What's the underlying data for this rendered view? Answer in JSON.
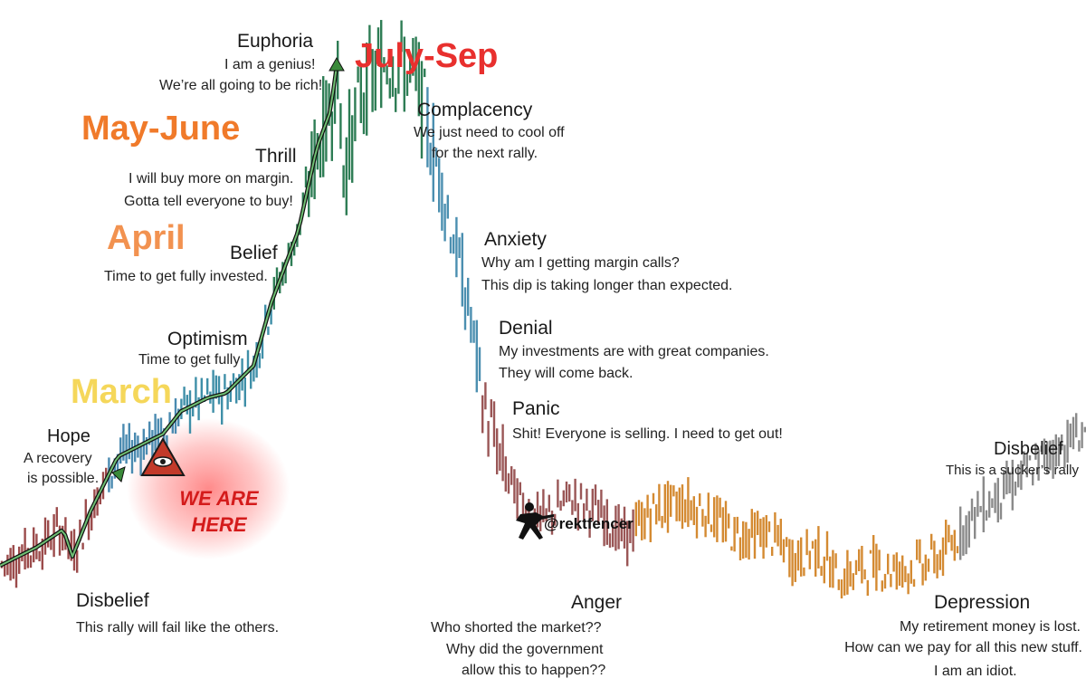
{
  "chart_data": {
    "type": "line",
    "title": "",
    "xlabel": "",
    "ylabel": "",
    "grid": false,
    "legend": "none",
    "stages": [
      {
        "key": "disbelief1",
        "name": "Disbelief",
        "quote": [
          "This rally will fail like the others."
        ],
        "color": "#7a3030"
      },
      {
        "key": "hope",
        "name": "Hope",
        "quote": [
          "A recovery",
          "is possible."
        ],
        "color": "#7a3030"
      },
      {
        "key": "optimism",
        "name": "Optimism",
        "quote": [
          "Time to get fully"
        ],
        "color": "#1a1a1a"
      },
      {
        "key": "belief",
        "name": "Belief",
        "quote": [
          "Time to get fully invested."
        ],
        "color": "#1a1a1a"
      },
      {
        "key": "thrill",
        "name": "Thrill",
        "quote": [
          "I will buy more on margin.",
          "Gotta tell everyone to buy!"
        ],
        "color": "#1a1a1a"
      },
      {
        "key": "euphoria",
        "name": "Euphoria",
        "quote": [
          "I am a genius!",
          "We’re all going to be rich!"
        ],
        "color": "#1a1a1a"
      },
      {
        "key": "complacency",
        "name": "Complacency",
        "quote": [
          "We just need to cool off",
          "for the next rally."
        ],
        "color": "#1a1a1a"
      },
      {
        "key": "anxiety",
        "name": "Anxiety",
        "quote": [
          "Why am I getting margin calls?",
          "This dip is taking longer than expected."
        ],
        "color": "#1a1a1a"
      },
      {
        "key": "denial",
        "name": "Denial",
        "quote": [
          "My investments are with great companies.",
          "They will come back."
        ],
        "color": "#1a1a1a"
      },
      {
        "key": "panic",
        "name": "Panic",
        "quote": [
          "Shit! Everyone is selling. I need to get out!"
        ],
        "color": "#1a1a1a"
      },
      {
        "key": "anger",
        "name": "Anger",
        "quote": [
          "Who shorted the market??",
          "Why did the government",
          "allow this to happen??"
        ],
        "color": "#1a1a1a"
      },
      {
        "key": "depression",
        "name": "Depression",
        "quote": [
          "My retirement money is lost.",
          "How can we pay for all this new stuff.",
          "I am an idiot."
        ],
        "color": "#1a1a1a"
      },
      {
        "key": "disbelief2",
        "name": "Disbelief",
        "quote": [
          "This is a sucker’s rally"
        ],
        "color": "#1a1a1a"
      }
    ],
    "months": [
      {
        "label": "March",
        "color": "#f5d75a"
      },
      {
        "label": "April",
        "color": "#f29250"
      },
      {
        "label": "May-June",
        "color": "#f07a2a"
      },
      {
        "label": "July-Sep",
        "color": "#e8302e"
      }
    ],
    "marker": {
      "line1": "WE ARE",
      "line2": "HERE",
      "icon": "all-seeing-eye-icon"
    },
    "watermark": "@rektfencer",
    "watermark_icon": "fencer-silhouette-icon",
    "series": [
      {
        "x": [
          0,
          40,
          70,
          80,
          100,
          130,
          160,
          180,
          200,
          230,
          250,
          280,
          300,
          330,
          350,
          365,
          372,
          380,
          400,
          430,
          460,
          490,
          510,
          520,
          535,
          555,
          575,
          600,
          630,
          660,
          690,
          720,
          750,
          780,
          810,
          850,
          880,
          900,
          930,
          960,
          1000,
          1040,
          1080,
          1120,
          1160,
          1200
        ],
        "y": [
          8,
          12,
          16,
          10,
          20,
          32,
          35,
          37,
          42,
          45,
          46,
          52,
          66,
          82,
          100,
          108,
          118,
          95,
          112,
          120,
          115,
          90,
          72,
          62,
          43,
          30,
          22,
          18,
          23,
          20,
          14,
          20,
          22,
          20,
          15,
          15,
          9,
          12,
          5,
          8,
          7,
          10,
          20,
          26,
          33,
          38
        ]
      }
    ],
    "phase_colors": {
      "disbelief": "#9b4b4b",
      "hope": "#4a8ab0",
      "belief": "#2f8a5e",
      "euphoria": "#2e7d55",
      "anxiety": "#4b8fb0",
      "panic": "#9a5656",
      "depression": "#d48a32",
      "disbelief_return": "#8a8a8a"
    }
  }
}
